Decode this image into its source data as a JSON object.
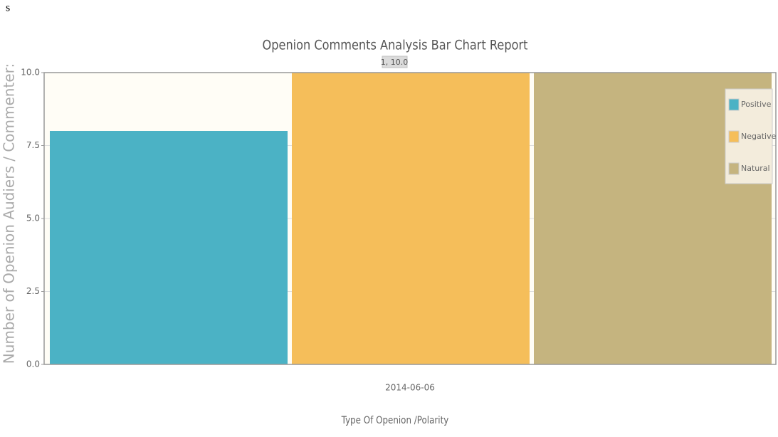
{
  "page_note": "s",
  "chart_data": {
    "type": "bar",
    "title": "Openion Comments Analysis Bar Chart Report",
    "tooltip": "1, 10.0",
    "y_label": "Number of Openion Audiers / Commenter:",
    "x_label": "Type Of Openion /Polarity",
    "categories": [
      "2014-06-06"
    ],
    "series": [
      {
        "name": "Positive",
        "color": "#4bb2c5",
        "values": [
          8
        ]
      },
      {
        "name": "Negative",
        "color": "#f5be5a",
        "values": [
          10
        ]
      },
      {
        "name": "Natural",
        "color": "#c5b47f",
        "values": [
          10
        ]
      }
    ],
    "ylim": [
      0,
      10
    ],
    "yticks": [
      {
        "value": 0,
        "label": "0.0"
      },
      2.5,
      {
        "value": 5,
        "label": "5.0"
      },
      7.5,
      {
        "value": 10,
        "label": "10.0"
      }
    ],
    "grid": true,
    "legend": "top-right"
  }
}
